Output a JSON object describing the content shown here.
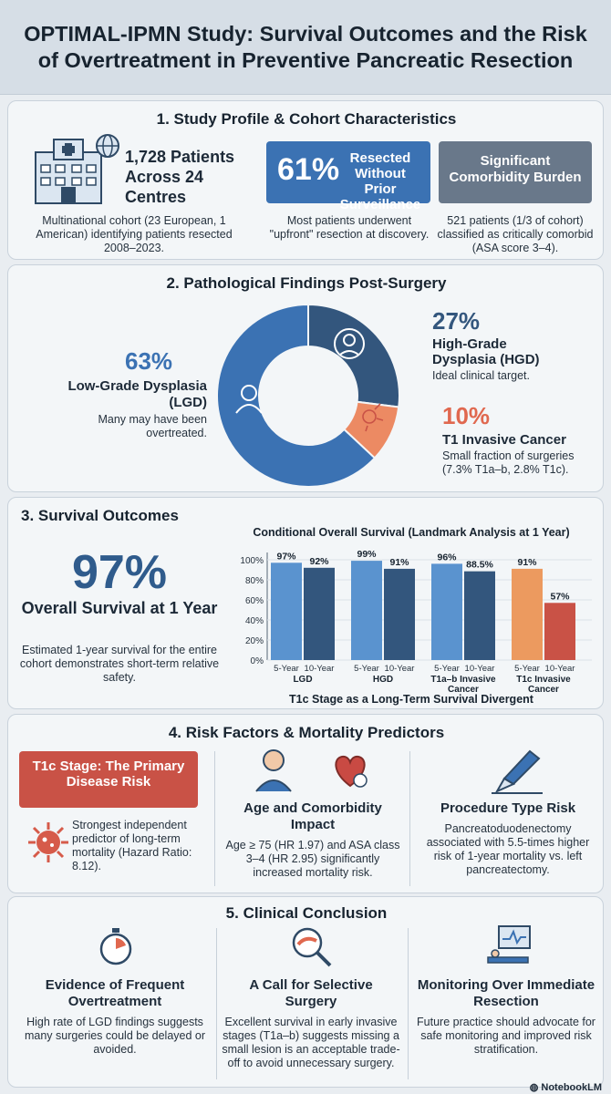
{
  "title": "OPTIMAL-IPMN Study: Survival Outcomes and the Risk of Overtreatment in Preventive Pancreatic Resection",
  "colors": {
    "blue": "#3b72b3",
    "dark_blue": "#33567d",
    "slate": "#69788a",
    "red": "#c95246",
    "orange": "#ec8a63",
    "light_blue": "#5a93cf"
  },
  "section1": {
    "title": "1. Study Profile & Cohort Characteristics",
    "patients": {
      "headline": "1,728 Patients Across 24 Centres",
      "desc": "Multinational cohort (23 European, 1 American) identifying patients resected 2008–2023."
    },
    "resected": {
      "percent": "61%",
      "label": "Resected Without Prior Surveillance",
      "desc": "Most patients underwent \"upfront\" resection at discovery."
    },
    "comorbidity": {
      "label": "Significant Comorbidity Burden",
      "desc": "521 patients (1/3 of cohort) classified as critically comorbid (ASA score 3–4)."
    },
    "icons": [
      "hospital-icon",
      "globe-icon"
    ]
  },
  "section2": {
    "title": "2. Pathological Findings Post-Surgery",
    "lgd": {
      "percent": "63%",
      "label": "Low-Grade Dysplasia (LGD)",
      "desc": "Many may have been overtreated."
    },
    "hgd": {
      "percent": "27%",
      "label": "High-Grade Dysplasia (HGD)",
      "desc": "Ideal clinical target."
    },
    "cancer": {
      "percent": "10%",
      "label": "T1 Invasive Cancer",
      "desc": "Small fraction of surgeries (7.3% T1a–b, 2.8% T1c)."
    },
    "icons": [
      "patient-icon",
      "doctor-icon",
      "cancer-cell-icon"
    ]
  },
  "section3": {
    "title": "3. Survival Outcomes",
    "big_percent": "97%",
    "big_label": "Overall Survival at 1 Year",
    "desc": "Estimated 1-year survival for the entire cohort demonstrates short-term relative safety.",
    "chart_caption": "T1c Stage as a Long-Term Survival Divergent"
  },
  "chart_data": {
    "type": "bar",
    "title": "Conditional Overall Survival (Landmark Analysis at 1 Year)",
    "ylim": [
      0,
      100
    ],
    "yticks": [
      "0%",
      "20%",
      "40%",
      "60%",
      "80%",
      "100%"
    ],
    "groups": [
      {
        "name": "LGD",
        "bars": [
          {
            "label": "5-Year",
            "value": 97,
            "text": "97%",
            "color": "#5a93cf"
          },
          {
            "label": "10-Year",
            "value": 92,
            "text": "92%",
            "color": "#33567d"
          }
        ]
      },
      {
        "name": "HGD",
        "bars": [
          {
            "label": "5-Year",
            "value": 99,
            "text": "99%",
            "color": "#5a93cf"
          },
          {
            "label": "10-Year",
            "value": 91,
            "text": "91%",
            "color": "#33567d"
          }
        ]
      },
      {
        "name": "T1a–b Invasive Cancer",
        "bars": [
          {
            "label": "5-Year",
            "value": 96,
            "text": "96%",
            "color": "#5a93cf"
          },
          {
            "label": "10-Year",
            "value": 88.5,
            "text": "88.5%",
            "color": "#33567d"
          }
        ]
      },
      {
        "name": "T1c Invasive Cancer",
        "bars": [
          {
            "label": "5-Year",
            "value": 91,
            "text": "91%",
            "color": "#ec9a5f"
          },
          {
            "label": "10-Year",
            "value": 57,
            "text": "57%",
            "color": "#c95246"
          }
        ]
      }
    ]
  },
  "section4": {
    "title": "4. Risk Factors & Mortality Predictors",
    "t1c": {
      "label": "T1c Stage: The Primary Disease Risk",
      "desc": "Strongest independent predictor of long-term mortality (Hazard Ratio: 8.12)."
    },
    "age": {
      "label": "Age and Comorbidity Impact",
      "desc": "Age ≥ 75 (HR 1.97) and ASA class 3–4 (HR 2.95) significantly increased mortality risk."
    },
    "procedure": {
      "label": "Procedure Type Risk",
      "desc": "Pancreatoduodenectomy associated with 5.5-times higher risk of 1-year mortality vs. left pancreatectomy."
    },
    "icons": [
      "virus-icon",
      "elderly-patient-icon",
      "heart-icon",
      "scalpel-icon"
    ]
  },
  "section5": {
    "title": "5. Clinical Conclusion",
    "c1": {
      "label": "Evidence of Frequent Overtreatment",
      "desc": "High rate of LGD findings suggests many surgeries could be delayed or avoided."
    },
    "c2": {
      "label": "A Call for Selective Surgery",
      "desc": "Excellent survival in early invasive stages (T1a–b) suggests missing a small lesion is an acceptable trade-off to avoid unnecessary surgery."
    },
    "c3": {
      "label": "Monitoring Over Immediate Resection",
      "desc": "Future practice should advocate for safe monitoring and improved risk stratification."
    },
    "icons": [
      "stopwatch-icon",
      "magnifier-pancreas-icon",
      "monitor-patient-icon"
    ]
  },
  "footer": {
    "brand": "NotebookLM"
  }
}
